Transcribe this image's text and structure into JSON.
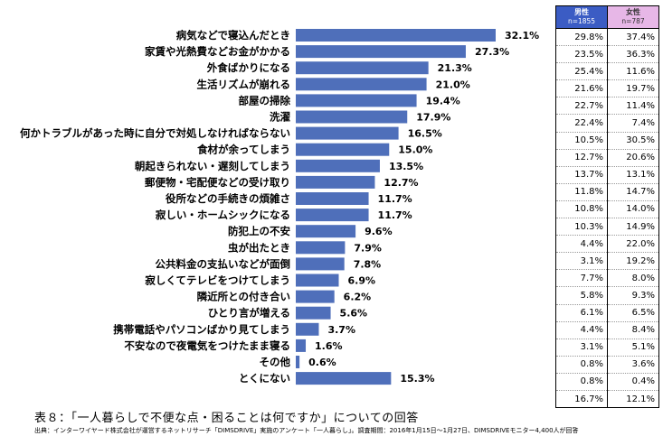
{
  "chart_data": {
    "type": "bar",
    "orientation": "horizontal",
    "categories": [
      "病気などで寝込んだとき",
      "家賃や光熱費などお金がかかる",
      "外食ばかりになる",
      "生活リズムが崩れる",
      "部屋の掃除",
      "洗濯",
      "何かトラブルがあった時に自分で対処しなければならない",
      "食材が余ってしまう",
      "朝起きられない・遅刻してしまう",
      "郵便物・宅配便などの受け取り",
      "役所などの手続きの煩雑さ",
      "寂しい・ホームシックになる",
      "防犯上の不安",
      "虫が出たとき",
      "公共料金の支払いなどが面倒",
      "寂しくてテレビをつけてしまう",
      "隣近所との付き合い",
      "ひとり言が増える",
      "携帯電話やパソコンばかり見てしまう",
      "不安なので夜電気をつけたまま寝る",
      "その他",
      "とくにない"
    ],
    "values": [
      32.1,
      27.3,
      21.3,
      21.0,
      19.4,
      17.9,
      16.5,
      15.0,
      13.5,
      12.7,
      11.7,
      11.7,
      9.6,
      7.9,
      7.8,
      6.9,
      6.2,
      5.6,
      3.7,
      1.6,
      0.6,
      15.3
    ],
    "value_labels": [
      "32.1%",
      "27.3%",
      "21.3%",
      "21.0%",
      "19.4%",
      "17.9%",
      "16.5%",
      "15.0%",
      "13.5%",
      "12.7%",
      "11.7%",
      "11.7%",
      "9.6%",
      "7.9%",
      "7.8%",
      "6.9%",
      "6.2%",
      "5.6%",
      "3.7%",
      "1.6%",
      "0.6%",
      "15.3%"
    ],
    "bar_color": "#4f6fba",
    "xlim": [
      0,
      32.1
    ],
    "grid": false,
    "title": "",
    "xlabel": "",
    "ylabel": ""
  },
  "table": {
    "male": {
      "label": "男性",
      "n": "n=1855",
      "color": "#3b5cc4"
    },
    "female": {
      "label": "女性",
      "n": "n=787",
      "color": "#e7b7e7"
    },
    "rows": [
      [
        "29.8%",
        "37.4%"
      ],
      [
        "23.5%",
        "36.3%"
      ],
      [
        "25.4%",
        "11.6%"
      ],
      [
        "21.6%",
        "19.7%"
      ],
      [
        "22.7%",
        "11.4%"
      ],
      [
        "22.4%",
        "7.4%"
      ],
      [
        "10.5%",
        "30.5%"
      ],
      [
        "12.7%",
        "20.6%"
      ],
      [
        "13.7%",
        "13.1%"
      ],
      [
        "11.8%",
        "14.7%"
      ],
      [
        "10.8%",
        "14.0%"
      ],
      [
        "10.3%",
        "14.9%"
      ],
      [
        "4.4%",
        "22.0%"
      ],
      [
        "3.1%",
        "19.2%"
      ],
      [
        "7.7%",
        "8.0%"
      ],
      [
        "5.8%",
        "9.3%"
      ],
      [
        "6.1%",
        "6.5%"
      ],
      [
        "4.4%",
        "8.4%"
      ],
      [
        "3.1%",
        "5.1%"
      ],
      [
        "0.8%",
        "3.6%"
      ],
      [
        "0.8%",
        "0.4%"
      ],
      [
        "16.7%",
        "12.1%"
      ]
    ]
  },
  "caption": "表８：「一人暮らしで不便な点・困ることは何ですか」についての回答",
  "source": "出典：インターワイヤード株式会社が運営するネットリサーチ「DIMSDRIVE」実施のアンケート「一人暮らし」。調査期間：2016年1月15日～1月27日、DIMSDRIVEモニター4,400人が回答"
}
